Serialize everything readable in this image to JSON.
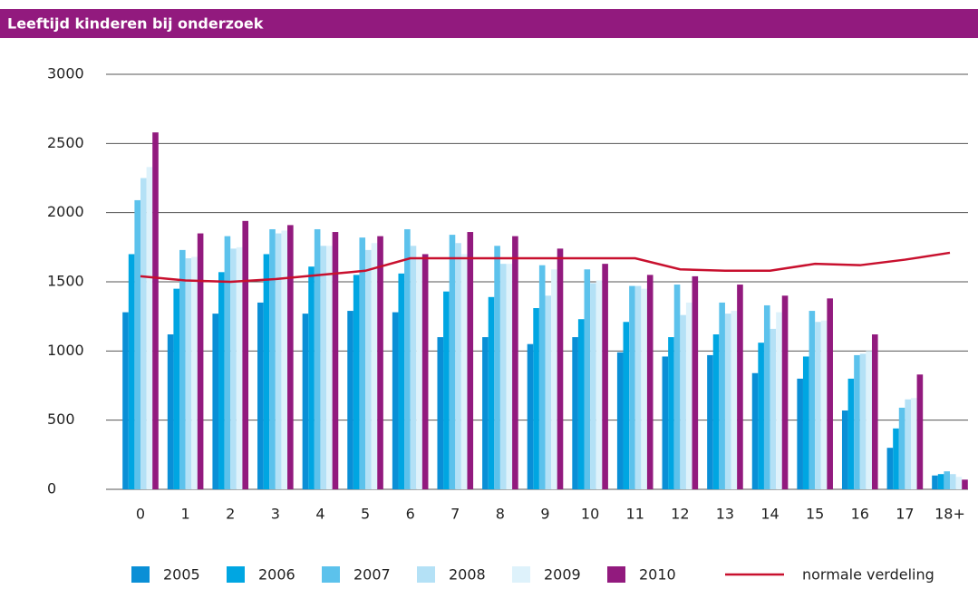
{
  "chart_data": {
    "type": "bar",
    "title": "Leeftijd kinderen bij onderzoek",
    "categories": [
      "0",
      "1",
      "2",
      "3",
      "4",
      "5",
      "6",
      "7",
      "8",
      "9",
      "10",
      "11",
      "12",
      "13",
      "14",
      "15",
      "16",
      "17",
      "18+"
    ],
    "ylim": [
      0,
      3000
    ],
    "yticks": [
      0,
      500,
      1000,
      1500,
      2000,
      2500,
      3000
    ],
    "grid": true,
    "series": [
      {
        "name": "2005",
        "color": "#0a8fd6",
        "values": [
          1280,
          1120,
          1270,
          1350,
          1270,
          1290,
          1280,
          1100,
          1100,
          1050,
          1100,
          990,
          960,
          970,
          840,
          800,
          570,
          300,
          100
        ]
      },
      {
        "name": "2006",
        "color": "#00a6e2",
        "values": [
          1700,
          1450,
          1570,
          1700,
          1610,
          1550,
          1560,
          1430,
          1390,
          1310,
          1230,
          1210,
          1100,
          1120,
          1060,
          960,
          800,
          440,
          110
        ]
      },
      {
        "name": "2007",
        "color": "#5cc2ec",
        "values": [
          2090,
          1730,
          1830,
          1880,
          1880,
          1820,
          1880,
          1840,
          1760,
          1620,
          1590,
          1470,
          1480,
          1350,
          1330,
          1290,
          970,
          590,
          130
        ]
      },
      {
        "name": "2008",
        "color": "#b4e1f6",
        "values": [
          2250,
          1670,
          1740,
          1850,
          1760,
          1730,
          1760,
          1780,
          1630,
          1400,
          1490,
          1470,
          1260,
          1270,
          1160,
          1210,
          980,
          650,
          110
        ]
      },
      {
        "name": "2009",
        "color": "#def2fb",
        "values": [
          2330,
          1680,
          1750,
          1870,
          1760,
          1780,
          1670,
          1700,
          1630,
          1590,
          1510,
          1450,
          1350,
          1290,
          1280,
          1220,
          1000,
          660,
          90
        ]
      },
      {
        "name": "2010",
        "color": "#921a7e",
        "values": [
          2580,
          1850,
          1940,
          1910,
          1860,
          1830,
          1700,
          1860,
          1830,
          1740,
          1630,
          1550,
          1540,
          1480,
          1400,
          1380,
          1120,
          830,
          70
        ]
      },
      {
        "name": "normale verdeling",
        "type": "line",
        "color": "#c8102e",
        "values": [
          1540,
          1510,
          1500,
          1520,
          1550,
          1580,
          1670,
          1670,
          1670,
          1670,
          1670,
          1670,
          1590,
          1580,
          1580,
          1630,
          1620,
          1660,
          1710
        ]
      }
    ]
  }
}
